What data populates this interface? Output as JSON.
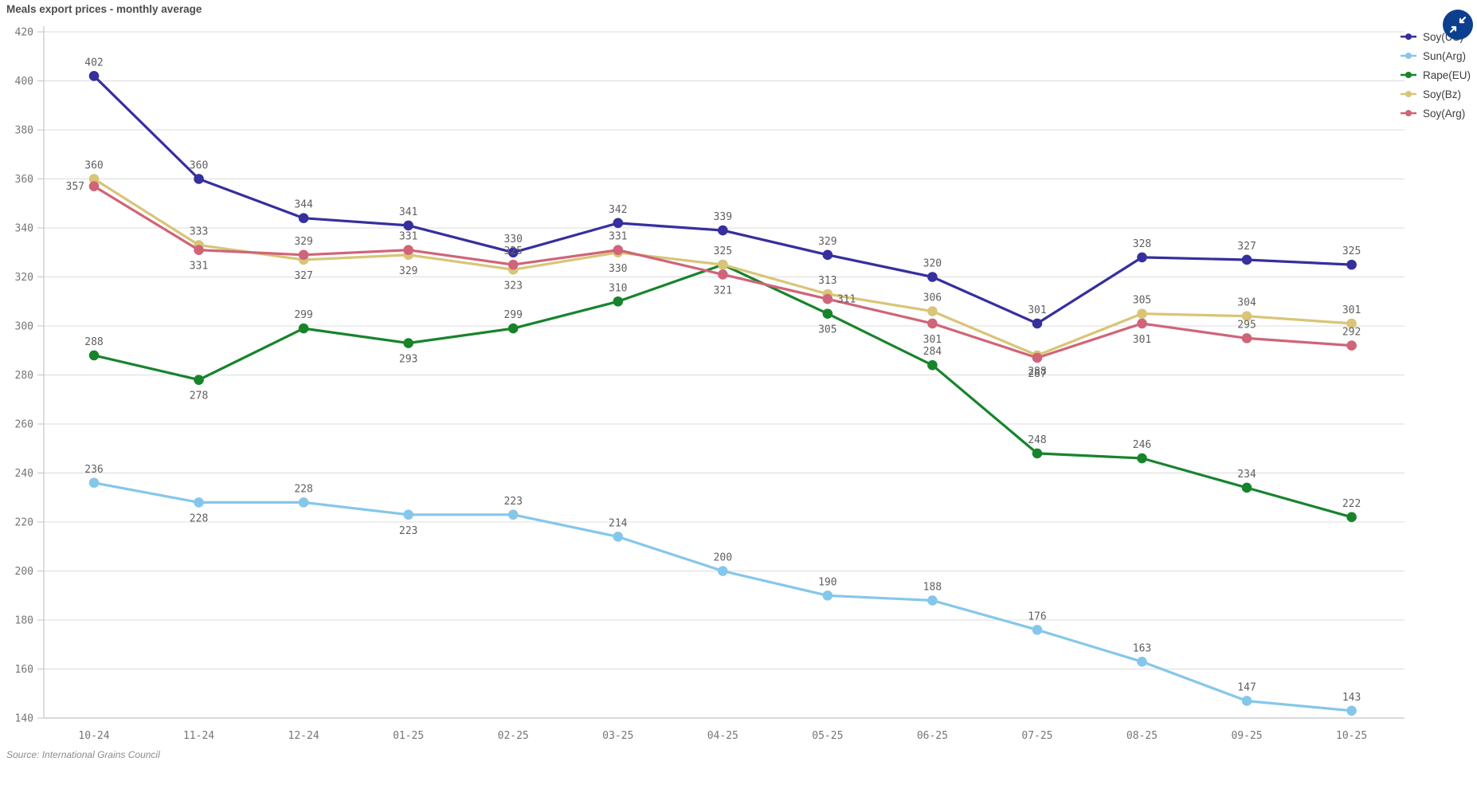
{
  "header": {
    "title": "Meals export prices - monthly average"
  },
  "footer": {
    "source": "Source: International Grains Council"
  },
  "controls": {
    "collapse_button_icon": "collapse-arrows-icon",
    "collapse_button_color": "#0d3f8f"
  },
  "colors": {
    "grid": "#dcdcdc",
    "axis": "#c4c4c4",
    "tick_text": "#767676",
    "data_label": "#5f5f5f"
  },
  "chart_data": {
    "type": "line",
    "title": "Meals export prices - monthly average",
    "categories": [
      "10-24",
      "11-24",
      "12-24",
      "01-25",
      "02-25",
      "03-25",
      "04-25",
      "05-25",
      "06-25",
      "07-25",
      "08-25",
      "09-25",
      "10-25"
    ],
    "ylim": [
      140,
      420
    ],
    "ytick_step": 20,
    "grid": true,
    "legend_position": "top-right",
    "series": [
      {
        "name": "Soy(US)",
        "color": "#362f9e",
        "values": [
          402,
          360,
          344,
          341,
          330,
          342,
          339,
          329,
          320,
          301,
          328,
          327,
          325
        ],
        "label_placement": [
          "above",
          "above",
          "above",
          "above",
          "above",
          "above",
          "above",
          "above",
          "above",
          "above",
          "above",
          "above",
          "above"
        ]
      },
      {
        "name": "Sun(Arg)",
        "color": "#85c7ea",
        "values": [
          236,
          228,
          228,
          223,
          223,
          214,
          200,
          190,
          188,
          176,
          163,
          147,
          143
        ],
        "label_placement": [
          "above",
          "below",
          "above",
          "below",
          "above",
          "above",
          "above",
          "above",
          "above",
          "above",
          "above",
          "above",
          "above"
        ]
      },
      {
        "name": "Rape(EU)",
        "color": "#17842c",
        "values": [
          288,
          278,
          299,
          293,
          299,
          310,
          325,
          305,
          284,
          248,
          246,
          234,
          222
        ],
        "label_placement": [
          "above",
          "below",
          "above",
          "below",
          "above",
          "above",
          "hidden",
          "below",
          "above",
          "above",
          "above",
          "above",
          "above"
        ]
      },
      {
        "name": "Soy(Bz)",
        "color": "#d8c577",
        "values": [
          360,
          333,
          327,
          329,
          323,
          330,
          325,
          313,
          306,
          288,
          305,
          304,
          301
        ],
        "label_placement": [
          "above",
          "above",
          "below",
          "below",
          "below",
          "below",
          "above",
          "above",
          "above",
          "below",
          "above",
          "above",
          "above"
        ]
      },
      {
        "name": "Soy(Arg)",
        "color": "#d06478",
        "values": [
          357,
          331,
          329,
          331,
          325,
          331,
          321,
          311,
          301,
          287,
          301,
          295,
          292
        ],
        "label_placement": [
          "left",
          "below",
          "above",
          "above",
          "above",
          "above",
          "below",
          "right",
          "below",
          "below",
          "below",
          "above",
          "above"
        ]
      }
    ]
  }
}
